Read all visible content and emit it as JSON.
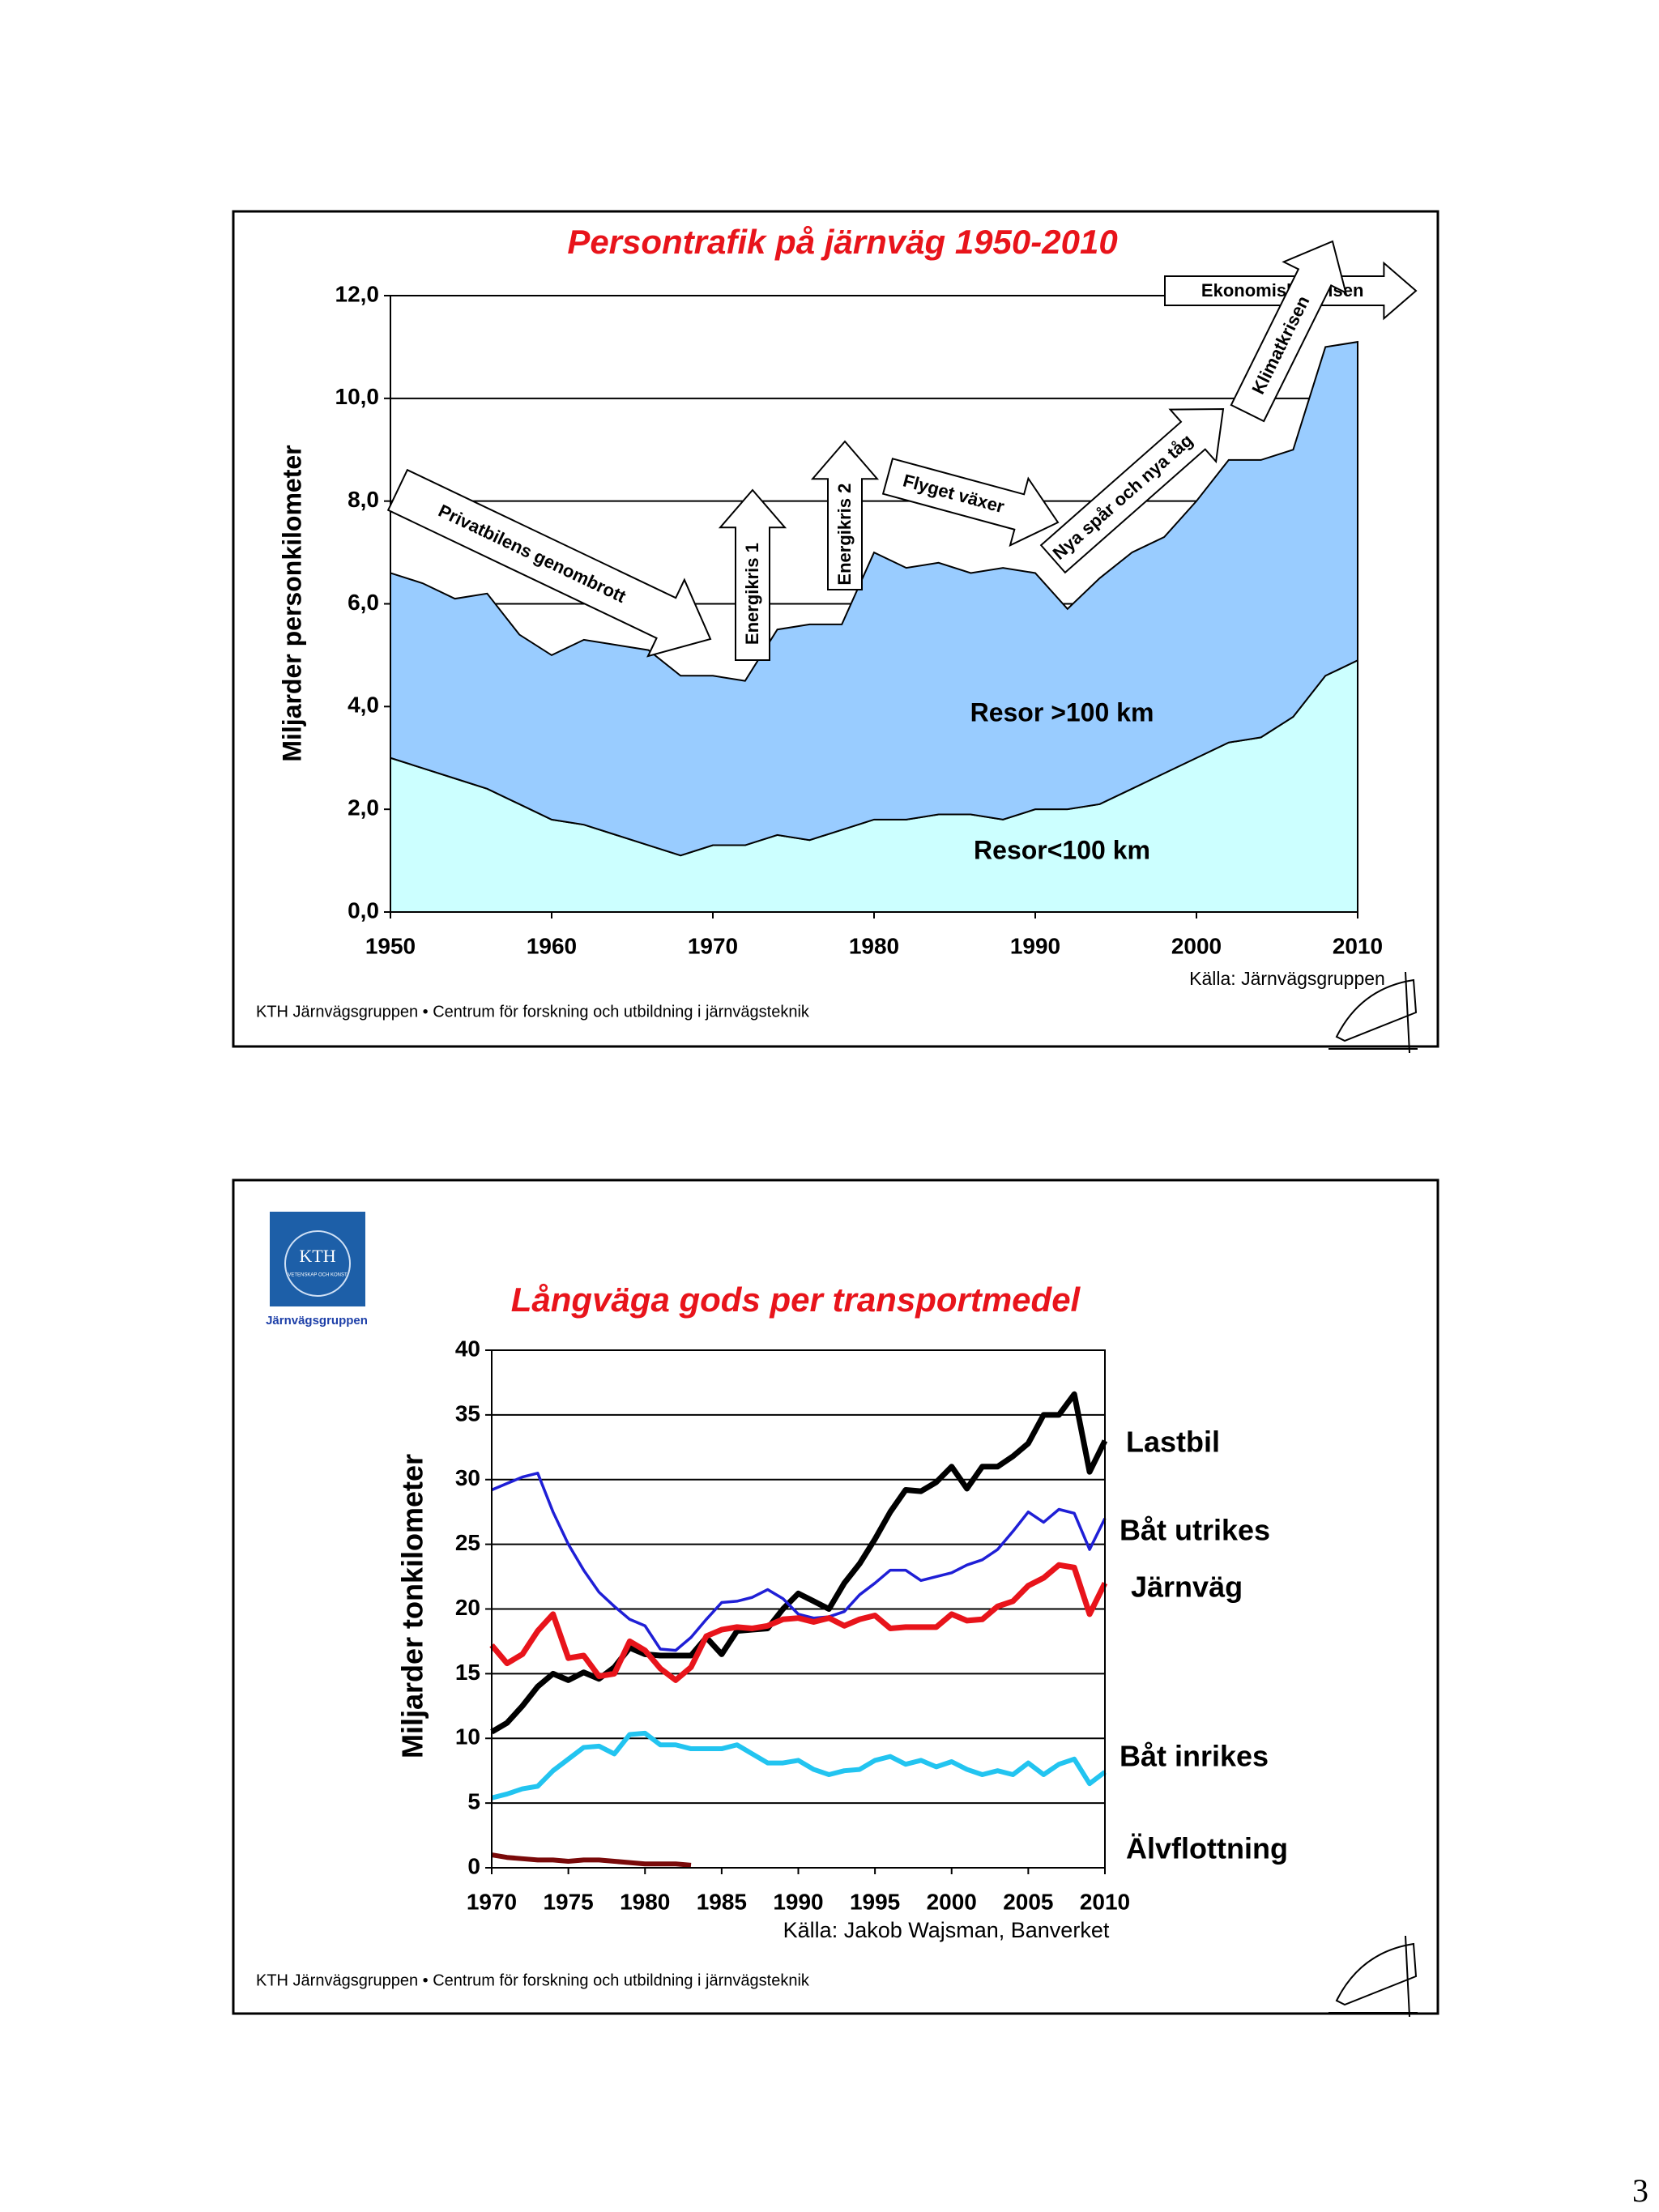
{
  "page_number": "3",
  "chart_data": [
    {
      "type": "area",
      "title": "Persontrafik på järnväg 1950-2010",
      "y_label": "Miljarder personkilometer",
      "source": "Källa: Järnvägsgruppen",
      "footer": "KTH Järnvägsgruppen • Centrum för forskning och utbildning i järnvägsteknik",
      "stacked": true,
      "annotations": [
        "Privatbilens genombrott",
        "Energikris 1",
        "Energikris 2",
        "Flyget växer",
        "Nya spår och nya tåg",
        "Ekonomiska krisen",
        "Klimatkrisen"
      ],
      "x": [
        1950,
        1952,
        1954,
        1956,
        1958,
        1960,
        1962,
        1964,
        1966,
        1968,
        1970,
        1972,
        1974,
        1976,
        1978,
        1980,
        1982,
        1984,
        1986,
        1988,
        1990,
        1992,
        1994,
        1996,
        1998,
        2000,
        2002,
        2004,
        2006,
        2008,
        2010
      ],
      "series": [
        {
          "name": "Resor<100 km",
          "color": "#ccffff",
          "values": [
            3.0,
            2.8,
            2.6,
            2.4,
            2.1,
            1.8,
            1.7,
            1.5,
            1.3,
            1.1,
            1.3,
            1.3,
            1.5,
            1.4,
            1.6,
            1.8,
            1.8,
            1.9,
            1.9,
            1.8,
            2.0,
            2.0,
            2.1,
            2.4,
            2.7,
            3.0,
            3.3,
            3.4,
            3.8,
            4.6,
            4.9
          ]
        },
        {
          "name": "Resor >100 km",
          "color": "#99ccff",
          "values": [
            3.6,
            3.6,
            3.5,
            3.8,
            3.3,
            3.2,
            3.6,
            3.7,
            3.8,
            3.5,
            3.3,
            3.2,
            4.0,
            4.2,
            4.0,
            5.2,
            4.9,
            4.9,
            4.7,
            4.9,
            4.6,
            3.9,
            4.4,
            4.6,
            4.6,
            5.0,
            5.5,
            5.4,
            5.2,
            6.4,
            6.2
          ]
        }
      ],
      "xlim": [
        1950,
        2010
      ],
      "xticks": [
        1950,
        1960,
        1970,
        1980,
        1990,
        2000,
        2010
      ],
      "ylim": [
        0,
        12
      ],
      "yticks": [
        {
          "value": 0,
          "label": "0,0"
        },
        {
          "value": 2,
          "label": "2,0"
        },
        {
          "value": 4,
          "label": "4,0"
        },
        {
          "value": 6,
          "label": "6,0"
        },
        {
          "value": 8,
          "label": "8,0"
        },
        {
          "value": 10,
          "label": "10,0"
        },
        {
          "value": 12,
          "label": "12,0"
        }
      ],
      "grid": true
    },
    {
      "type": "line",
      "title": "Långväga gods per transportmedel",
      "y_label": "Miljarder tonkilometer",
      "source": "Källa: Jakob Wajsman, Banverket",
      "footer": "KTH Järnvägsgruppen • Centrum för forskning och utbildning i järnvägsteknik",
      "logo": {
        "name": "KTH",
        "motto": "VETENSKAP OCH KONST",
        "group": "Järnvägsgruppen"
      },
      "x": [
        1970,
        1971,
        1972,
        1973,
        1974,
        1975,
        1976,
        1977,
        1978,
        1979,
        1980,
        1981,
        1982,
        1983,
        1984,
        1985,
        1986,
        1987,
        1988,
        1989,
        1990,
        1991,
        1992,
        1993,
        1994,
        1995,
        1996,
        1997,
        1998,
        1999,
        2000,
        2001,
        2002,
        2003,
        2004,
        2005,
        2006,
        2007,
        2008,
        2009,
        2010
      ],
      "series": [
        {
          "name": "Lastbil",
          "color": "#000000",
          "values": [
            10.5,
            11.2,
            12.5,
            14,
            15,
            14.5,
            15.1,
            14.6,
            15.5,
            17,
            16.5,
            16.4,
            16.4,
            16.4,
            17.8,
            16.5,
            18.3,
            18.4,
            18.5,
            20,
            21.2,
            20.6,
            20,
            22,
            23.5,
            25.4,
            27.5,
            29.2,
            29.1,
            29.8,
            31,
            29.3,
            31,
            31,
            31.8,
            32.8,
            35,
            35,
            36.6,
            30.6,
            33
          ]
        },
        {
          "name": "Båt utrikes",
          "color": "#1f1fd6",
          "values": [
            29.2,
            29.7,
            30.2,
            30.5,
            27.5,
            25,
            23,
            21.3,
            20.2,
            19.2,
            18.7,
            16.9,
            16.8,
            17.8,
            19.2,
            20.5,
            20.6,
            20.9,
            21.5,
            20.8,
            19.6,
            19.3,
            19.4,
            19.8,
            21.1,
            22,
            23,
            23,
            22.2,
            22.5,
            22.8,
            23.4,
            23.8,
            24.6,
            26,
            27.5,
            26.7,
            27.7,
            27.4,
            24.6,
            27
          ]
        },
        {
          "name": "Järnväg",
          "color": "#e8141b",
          "values": [
            17.2,
            15.8,
            16.5,
            18.3,
            19.6,
            16.2,
            16.4,
            14.8,
            15,
            17.5,
            16.8,
            15.4,
            14.5,
            15.5,
            17.9,
            18.4,
            18.6,
            18.5,
            18.7,
            19.2,
            19.3,
            19,
            19.3,
            18.7,
            19.2,
            19.5,
            18.5,
            18.6,
            18.6,
            18.6,
            19.6,
            19.1,
            19.2,
            20.2,
            20.6,
            21.8,
            22.4,
            23.4,
            23.2,
            19.6,
            22
          ]
        },
        {
          "name": "Båt inrikes",
          "color": "#22c4f0",
          "values": [
            5.4,
            5.7,
            6.1,
            6.3,
            7.5,
            8.4,
            9.3,
            9.4,
            8.8,
            10.3,
            10.4,
            9.5,
            9.5,
            9.2,
            9.2,
            9.2,
            9.5,
            8.8,
            8.1,
            8.1,
            8.3,
            7.6,
            7.2,
            7.5,
            7.6,
            8.3,
            8.6,
            8,
            8.3,
            7.8,
            8.2,
            7.6,
            7.2,
            7.5,
            7.2,
            8.1,
            7.2,
            8,
            8.4,
            6.5,
            7.4
          ]
        },
        {
          "name": "Älvflottning",
          "color": "#7a0a0a",
          "values": [
            1.0,
            0.8,
            0.7,
            0.6,
            0.6,
            0.5,
            0.6,
            0.6,
            0.5,
            0.4,
            0.3,
            0.3,
            0.3,
            0.2,
            null,
            null,
            null,
            null,
            null,
            null,
            null,
            null,
            null,
            null,
            null,
            null,
            null,
            null,
            null,
            null,
            null,
            null,
            null,
            null,
            null,
            null,
            null,
            null,
            null,
            null,
            null
          ]
        }
      ],
      "xlim": [
        1970,
        2010
      ],
      "xticks": [
        1970,
        1975,
        1980,
        1985,
        1990,
        1995,
        2000,
        2005,
        2010
      ],
      "ylim": [
        0,
        40
      ],
      "yticks": [
        0,
        5,
        10,
        15,
        20,
        25,
        30,
        35,
        40
      ],
      "grid": true
    }
  ]
}
